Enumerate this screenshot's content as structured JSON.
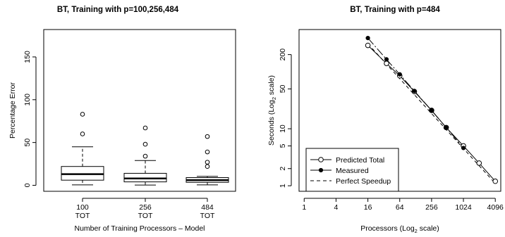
{
  "chart_data": [
    {
      "type": "box",
      "title": "BT, Training with p=100,256,484",
      "xlabel": "Number of Training Processors – Model",
      "ylabel": "Percentage Error",
      "ylim": [
        0,
        160
      ],
      "yticks": [
        0,
        50,
        100,
        150
      ],
      "categories": [
        {
          "line1": "100",
          "line2": "TOT"
        },
        {
          "line1": "256",
          "line2": "TOT"
        },
        {
          "line1": "484",
          "line2": "TOT"
        }
      ],
      "boxes": [
        {
          "whisker_low": 0.5,
          "q1": 6,
          "median": 13,
          "q3": 22,
          "whisker_high": 45,
          "outliers": [
            60,
            83
          ]
        },
        {
          "whisker_low": 0.3,
          "q1": 4,
          "median": 8,
          "q3": 14,
          "whisker_high": 29,
          "outliers": [
            34,
            48,
            67
          ]
        },
        {
          "whisker_low": 0.5,
          "q1": 3.5,
          "median": 6,
          "q3": 9,
          "whisker_high": 10.5,
          "outliers": [
            22,
            27,
            39,
            57
          ]
        }
      ],
      "grid": false
    },
    {
      "type": "line",
      "title": "BT, Training with p=484",
      "xlabel_main": "Processors (Log",
      "xlabel_sub": "2",
      "xlabel_end": " scale)",
      "ylabel_main": "Seconds (Log",
      "ylabel_sub": "2",
      "ylabel_end": " scale)",
      "x_scale": "log2",
      "y_scale": "log2",
      "xticks": [
        1,
        4,
        16,
        64,
        256,
        1024,
        4096
      ],
      "yticks": [
        1,
        2,
        5,
        10,
        50,
        200
      ],
      "xlim": [
        0.8,
        5200
      ],
      "ylim": [
        0.8,
        550
      ],
      "series": [
        {
          "name": "Predicted Total",
          "style": "open-circle-solid",
          "x": [
            16,
            36,
            64,
            121,
            256,
            484,
            1024,
            2025,
            4096
          ],
          "y": [
            290,
            140,
            85,
            45,
            21,
            10.5,
            5.0,
            2.5,
            1.2
          ]
        },
        {
          "name": "Measured",
          "style": "filled-circle-solid",
          "x": [
            16,
            36,
            64,
            121,
            256,
            484,
            1024
          ],
          "y": [
            390,
            165,
            90,
            46,
            21,
            10.5,
            4.6
          ]
        },
        {
          "name": "Perfect Speedup",
          "style": "dashed",
          "x": [
            16,
            4096
          ],
          "y": [
            310,
            1.1
          ]
        }
      ],
      "legend_position": "bottom-left",
      "grid": false
    }
  ]
}
